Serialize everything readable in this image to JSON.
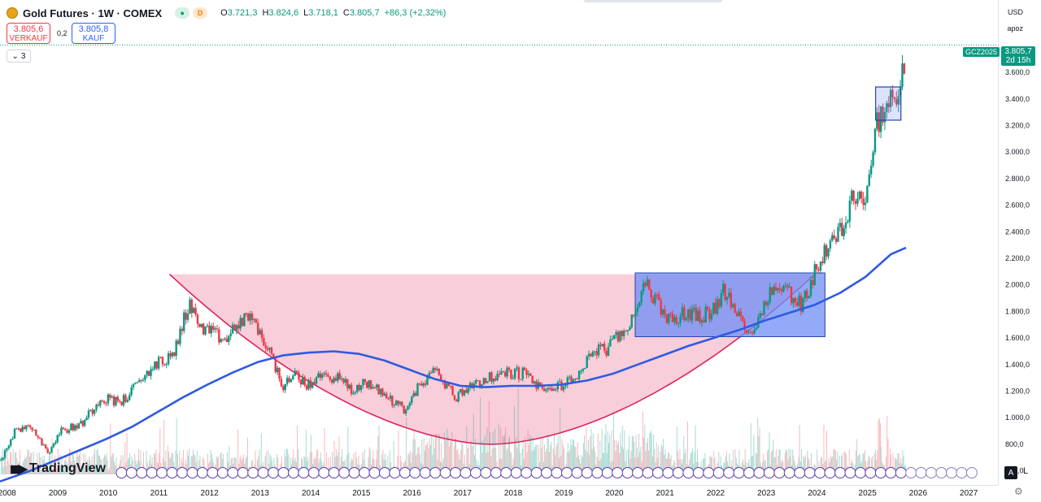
{
  "header": {
    "title": "Gold Futures · 1W · COMEX",
    "delay_badge": "D",
    "ohlc": {
      "o_label": "O",
      "o": "3.721,3",
      "h_label": "H",
      "h": "3.824,6",
      "l_label": "L",
      "l": "3.718,1",
      "c_label": "C",
      "c": "3.805,7",
      "change": "+86,3 (+2,32%)"
    }
  },
  "trade": {
    "sell_price": "3.805,6",
    "sell_label": "VERKAUF",
    "spread": "0,2",
    "buy_price": "3.805,8",
    "buy_label": "KAUF"
  },
  "indicators_toggle": "3",
  "right_top": {
    "currency": "USD",
    "scale_mode": "apoz"
  },
  "price_axis": {
    "ticks": [
      "600,0",
      "800,0",
      "1.000,0",
      "1.200,0",
      "1.400,0",
      "1.600,0",
      "1.800,0",
      "2.000,0",
      "2.200,0",
      "2.400,0",
      "2.600,0",
      "2.800,0",
      "3.000,0",
      "3.200,0",
      "3.400,0",
      "3.600,0"
    ],
    "last_price": "3.805,7",
    "countdown": "2d 15h",
    "symbol_tag": "GCZ2025"
  },
  "time_axis": {
    "ticks": [
      "2008",
      "2009",
      "2010",
      "2011",
      "2012",
      "2013",
      "2014",
      "2015",
      "2016",
      "2017",
      "2018",
      "2019",
      "2020",
      "2021",
      "2022",
      "2023",
      "2024",
      "2025",
      "2026",
      "2027"
    ]
  },
  "branding": {
    "logo_text": "TradingView"
  },
  "controls": {
    "auto_label": "A",
    "log_label": "L"
  },
  "colors": {
    "up": "#089981",
    "down": "#f23645",
    "ma": "#2f5be0",
    "cup_fill": "#f7c6d3",
    "cup_line": "#e0245e",
    "rect_fill": "#6f8df5",
    "rect_border": "#2743a8",
    "small_rect": "#2743a8"
  },
  "chart_data": {
    "type": "candlestick",
    "title": "Gold Futures · 1W · COMEX",
    "x_unit": "year",
    "xlim": [
      2007.9,
      2027.6
    ],
    "ylim": [
      500,
      3900
    ],
    "price_path": [
      [
        2007.9,
        680
      ],
      [
        2008.2,
        900
      ],
      [
        2008.5,
        950
      ],
      [
        2008.85,
        740
      ],
      [
        2009.1,
        900
      ],
      [
        2009.5,
        950
      ],
      [
        2009.9,
        1150
      ],
      [
        2010.3,
        1120
      ],
      [
        2010.6,
        1240
      ],
      [
        2010.95,
        1400
      ],
      [
        2011.3,
        1450
      ],
      [
        2011.65,
        1880
      ],
      [
        2011.8,
        1700
      ],
      [
        2012.0,
        1650
      ],
      [
        2012.35,
        1580
      ],
      [
        2012.75,
        1770
      ],
      [
        2013.0,
        1670
      ],
      [
        2013.3,
        1430
      ],
      [
        2013.5,
        1230
      ],
      [
        2013.75,
        1320
      ],
      [
        2014.0,
        1240
      ],
      [
        2014.25,
        1320
      ],
      [
        2014.6,
        1300
      ],
      [
        2014.9,
        1180
      ],
      [
        2015.1,
        1280
      ],
      [
        2015.5,
        1170
      ],
      [
        2015.9,
        1060
      ],
      [
        2016.2,
        1250
      ],
      [
        2016.5,
        1360
      ],
      [
        2016.9,
        1150
      ],
      [
        2017.2,
        1250
      ],
      [
        2017.6,
        1300
      ],
      [
        2018.0,
        1340
      ],
      [
        2018.3,
        1330
      ],
      [
        2018.65,
        1190
      ],
      [
        2018.9,
        1240
      ],
      [
        2019.25,
        1280
      ],
      [
        2019.6,
        1500
      ],
      [
        2019.9,
        1520
      ],
      [
        2020.2,
        1640
      ],
      [
        2020.45,
        1760
      ],
      [
        2020.6,
        2050
      ],
      [
        2020.9,
        1850
      ],
      [
        2021.2,
        1720
      ],
      [
        2021.5,
        1800
      ],
      [
        2021.75,
        1760
      ],
      [
        2022.0,
        1820
      ],
      [
        2022.2,
        1950
      ],
      [
        2022.5,
        1750
      ],
      [
        2022.8,
        1640
      ],
      [
        2023.05,
        1930
      ],
      [
        2023.35,
        1990
      ],
      [
        2023.75,
        1850
      ],
      [
        2023.95,
        2050
      ],
      [
        2024.2,
        2250
      ],
      [
        2024.5,
        2400
      ],
      [
        2024.8,
        2700
      ],
      [
        2025.0,
        2650
      ],
      [
        2025.25,
        3250
      ],
      [
        2025.45,
        3350
      ],
      [
        2025.65,
        3400
      ],
      [
        2025.8,
        3805.7
      ]
    ],
    "moving_average": [
      [
        2007.9,
        520
      ],
      [
        2008.5,
        600
      ],
      [
        2009.0,
        680
      ],
      [
        2009.5,
        760
      ],
      [
        2010.0,
        840
      ],
      [
        2010.5,
        930
      ],
      [
        2011.0,
        1040
      ],
      [
        2011.5,
        1150
      ],
      [
        2012.0,
        1250
      ],
      [
        2012.5,
        1340
      ],
      [
        2013.0,
        1420
      ],
      [
        2013.5,
        1470
      ],
      [
        2014.0,
        1490
      ],
      [
        2014.5,
        1500
      ],
      [
        2015.0,
        1480
      ],
      [
        2015.5,
        1430
      ],
      [
        2016.0,
        1360
      ],
      [
        2016.5,
        1290
      ],
      [
        2017.0,
        1240
      ],
      [
        2017.5,
        1230
      ],
      [
        2018.0,
        1240
      ],
      [
        2018.5,
        1240
      ],
      [
        2019.0,
        1250
      ],
      [
        2019.5,
        1280
      ],
      [
        2020.0,
        1330
      ],
      [
        2020.5,
        1400
      ],
      [
        2021.0,
        1470
      ],
      [
        2021.5,
        1540
      ],
      [
        2022.0,
        1600
      ],
      [
        2022.5,
        1660
      ],
      [
        2023.0,
        1730
      ],
      [
        2023.5,
        1790
      ],
      [
        2024.0,
        1850
      ],
      [
        2024.5,
        1940
      ],
      [
        2025.0,
        2060
      ],
      [
        2025.5,
        2230
      ],
      [
        2025.8,
        2280
      ]
    ],
    "cup_left": 2011.25,
    "cup_right": 2024.0,
    "cup_rim": 2080,
    "cup_bottom": 800,
    "cup_bottom_x": 2017.6,
    "range_box": {
      "x1": 2020.45,
      "x2": 2024.2,
      "y1": 1610,
      "y2": 2090
    },
    "small_box": {
      "x1": 2025.2,
      "x2": 2025.7,
      "y1": 3240,
      "y2": 3490
    },
    "last_price": 3805.7,
    "last_price_label": "3.805,7",
    "symbol_tag": "GCZ2025",
    "countdown": "2d 15h",
    "volume_scale_max": 1
  }
}
